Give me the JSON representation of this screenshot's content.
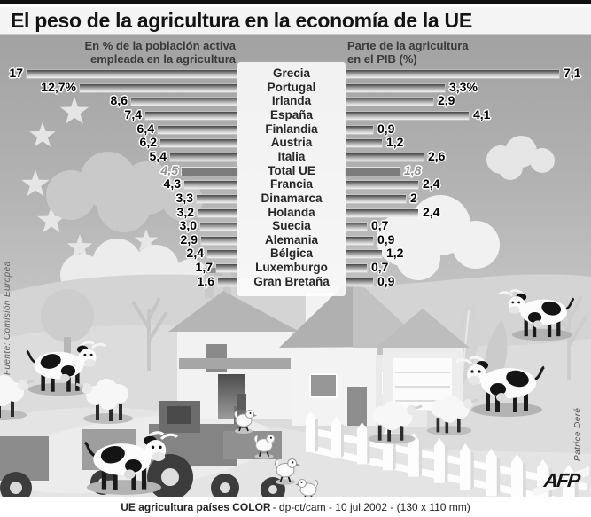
{
  "title": "El peso de la agricultura en la economía de la UE",
  "headers": {
    "left_line1": "En % de la población activa",
    "left_line2": "empleada en la agricultura",
    "right_line1": "Parte de la agricultura",
    "right_line2": "en el PIB (%)"
  },
  "chart_data": {
    "type": "bar",
    "subtype": "diverging-horizontal-tornado",
    "categories": [
      "Grecia",
      "Portugal",
      "Irlanda",
      "España",
      "Finlandia",
      "Austria",
      "Italia",
      "Total UE",
      "Francia",
      "Dinamarca",
      "Holanda",
      "Suecia",
      "Alemania",
      "Bélgica",
      "Luxemburgo",
      "Gran Bretaña"
    ],
    "series": [
      {
        "name": "En % de la población activa empleada en la agricultura",
        "side": "left",
        "values": [
          17,
          12.7,
          8.6,
          7.4,
          6.4,
          6.2,
          5.4,
          4.5,
          4.3,
          3.3,
          3.2,
          3.0,
          2.9,
          2.4,
          1.7,
          1.6
        ],
        "labels": [
          "17",
          "12,7%",
          "8,6",
          "7,4",
          "6,4",
          "6,2",
          "5,4",
          "4,5",
          "4,3",
          "3,3",
          "3,2",
          "3,0",
          "2,9",
          "2,4",
          "1,7",
          "1,6"
        ]
      },
      {
        "name": "Parte de la agricultura en el PIB (%)",
        "side": "right",
        "values": [
          7.1,
          3.3,
          2.9,
          4.1,
          0.9,
          1.2,
          2.6,
          1.8,
          2.4,
          2,
          2.4,
          0.7,
          0.9,
          1.2,
          0.7,
          0.9
        ],
        "labels": [
          "7,1",
          "3,3%",
          "2,9",
          "4,1",
          "0,9",
          "1,2",
          "2,6",
          "1,8",
          "2,4",
          "2",
          "2,4",
          "0,7",
          "0,9",
          "1,2",
          "0,7",
          "0,9"
        ]
      }
    ],
    "highlight_category": "Total UE",
    "xlim_left": [
      0,
      17.5
    ],
    "xlim_right": [
      0,
      7.5
    ],
    "grid": false,
    "legend_position": "column-headers"
  },
  "source": "Fuente: Comisión Europea",
  "credit": "Patrice Deré",
  "logo": "AFP",
  "footer": {
    "bold": "UE agricultura países COLOR",
    "rest": " - dp-ct/cam - 10 jul 2002 - (130 x 110 mm)"
  },
  "colors": {
    "bar_gradient_top": "#454545",
    "bar_gradient_bottom": "#f1f1f1",
    "total_bar": "#7b7b7b",
    "title_bg": "#f4f4f4",
    "sky_top": "#a2a2a2",
    "sky_bottom": "#cfcfcf",
    "panel": "rgba(255,255,255,0.85)"
  }
}
